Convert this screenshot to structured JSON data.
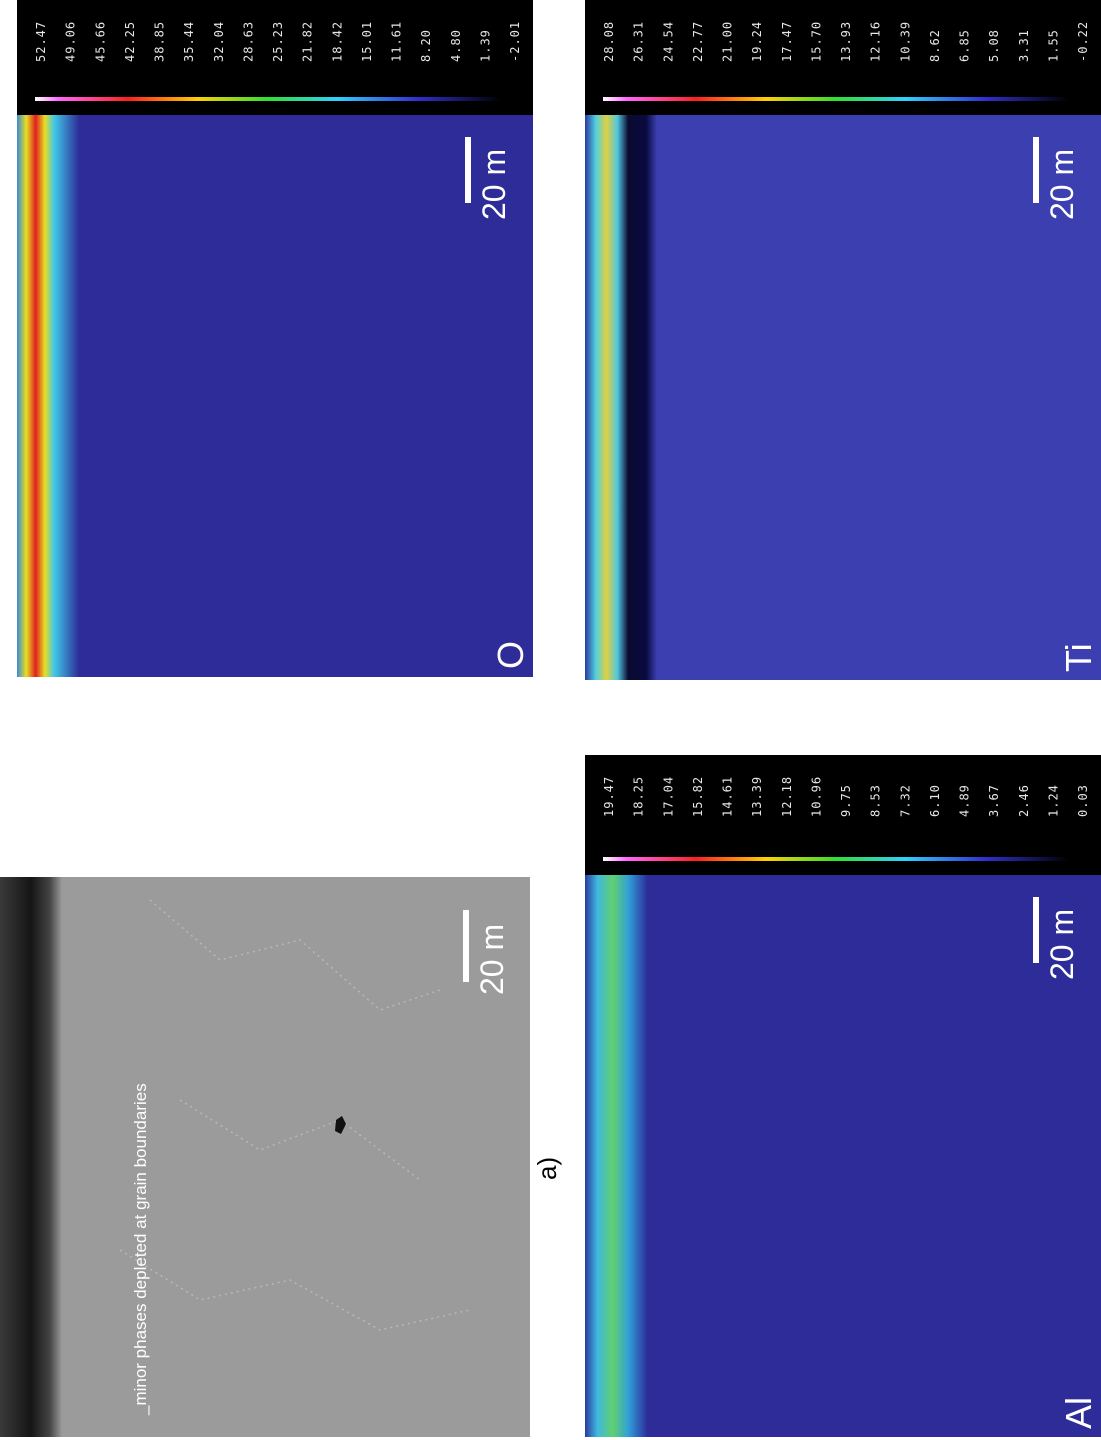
{
  "figure_label": "a)",
  "annotation": "_minor phases depleted at grain boundaries",
  "sem_panel": {
    "scale_bar": "20 m"
  },
  "maps": [
    {
      "element": "O",
      "scale_bar": "20 m",
      "colorbar_labels": [
        "52.47",
        "49.06",
        "45.66",
        "42.25",
        "38.85",
        "35.44",
        "32.04",
        "28.63",
        "25.23",
        "21.82",
        "18.42",
        "15.01",
        "11.61",
        "8.20",
        "4.80",
        "1.39",
        "-2.01"
      ]
    },
    {
      "element": "Ti",
      "scale_bar": "20 m",
      "colorbar_labels": [
        "28.08",
        "26.31",
        "24.54",
        "22.77",
        "21.00",
        "19.24",
        "17.47",
        "15.70",
        "13.93",
        "12.16",
        "10.39",
        "8.62",
        "6.85",
        "5.08",
        "3.31",
        "1.55",
        "-0.22"
      ]
    },
    {
      "element": "Al",
      "scale_bar": "20 m",
      "colorbar_labels": [
        "19.47",
        "18.25",
        "17.04",
        "15.82",
        "14.61",
        "13.39",
        "12.18",
        "10.96",
        "9.75",
        "8.53",
        "7.32",
        "6.10",
        "4.89",
        "3.67",
        "2.46",
        "1.24",
        "0.03"
      ]
    }
  ]
}
